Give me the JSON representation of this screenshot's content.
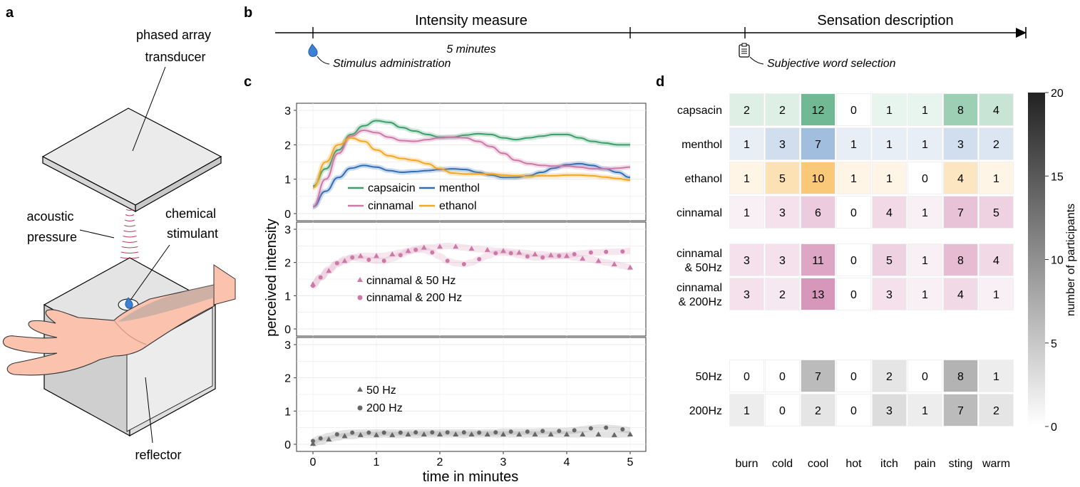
{
  "panel_labels": {
    "a": "a",
    "b": "b",
    "c": "c",
    "d": "d"
  },
  "panel_a": {
    "transducer": [
      "phased array",
      "transducer"
    ],
    "acoustic": [
      "acoustic",
      "pressure"
    ],
    "chemical": [
      "chemical",
      "stimulant"
    ],
    "reflector": "reflector"
  },
  "panel_b": {
    "intensity_label": "Intensity measure",
    "sensation_label": "Sensation description",
    "duration": "5 minutes",
    "stimulus": "Stimulus administration",
    "word_selection": "Subjective word selection"
  },
  "colors": {
    "capsaicin": "#3a9e6a",
    "menthol": "#2f6db5",
    "cinnamal": "#cc79a7",
    "ethanol": "#f5a623",
    "control": "#666666"
  },
  "chart_data": [
    {
      "type": "line",
      "panel": "c-top",
      "xlabel": "time in minutes",
      "ylabel": "perceived intensity",
      "xlim": [
        0,
        5
      ],
      "ylim": [
        0,
        3
      ],
      "x_ticks": [
        0,
        1,
        2,
        3,
        4,
        5
      ],
      "y_ticks": [
        0,
        1,
        2,
        3
      ],
      "grid": true,
      "x": [
        0,
        0.2,
        0.4,
        0.6,
        0.8,
        1.0,
        1.2,
        1.4,
        1.6,
        1.8,
        2.0,
        2.2,
        2.4,
        2.6,
        2.8,
        3.0,
        3.2,
        3.4,
        3.6,
        3.8,
        4.0,
        4.2,
        4.4,
        4.6,
        4.8,
        5.0
      ],
      "series": [
        {
          "name": "capsaicin",
          "values": [
            0.8,
            1.3,
            1.85,
            2.3,
            2.55,
            2.7,
            2.65,
            2.5,
            2.4,
            2.3,
            2.22,
            2.22,
            2.28,
            2.32,
            2.3,
            2.2,
            2.15,
            2.2,
            2.25,
            2.3,
            2.3,
            2.2,
            2.1,
            2.05,
            2.0,
            2.0
          ]
        },
        {
          "name": "menthol",
          "values": [
            0.2,
            0.65,
            1.05,
            1.32,
            1.4,
            1.35,
            1.25,
            1.2,
            1.22,
            1.25,
            1.28,
            1.3,
            1.28,
            1.2,
            1.12,
            1.05,
            1.05,
            1.1,
            1.2,
            1.32,
            1.42,
            1.45,
            1.4,
            1.3,
            1.2,
            1.05
          ]
        },
        {
          "name": "cinnamal",
          "values": [
            0.2,
            1.0,
            1.75,
            2.25,
            2.42,
            2.35,
            2.22,
            2.12,
            2.1,
            2.15,
            2.2,
            2.22,
            2.2,
            2.1,
            1.95,
            1.75,
            1.55,
            1.45,
            1.4,
            1.38,
            1.38,
            1.35,
            1.3,
            1.3,
            1.32,
            1.35
          ]
        },
        {
          "name": "ethanol",
          "values": [
            0.75,
            1.5,
            2.0,
            2.2,
            2.1,
            1.85,
            1.68,
            1.6,
            1.55,
            1.45,
            1.3,
            1.18,
            1.15,
            1.15,
            1.15,
            1.12,
            1.1,
            1.08,
            1.1,
            1.1,
            1.12,
            1.12,
            1.1,
            1.06,
            1.02,
            0.97
          ]
        }
      ]
    },
    {
      "type": "scatter",
      "panel": "c-middle",
      "xlim": [
        0,
        5
      ],
      "ylim": [
        0,
        3
      ],
      "y_ticks": [
        0,
        1,
        2,
        3
      ],
      "grid": true,
      "x": [
        0,
        0.12,
        0.25,
        0.38,
        0.5,
        0.62,
        0.75,
        0.88,
        1.0,
        1.12,
        1.25,
        1.38,
        1.5,
        1.62,
        1.75,
        1.88,
        2.0,
        2.12,
        2.25,
        2.38,
        2.5,
        2.62,
        2.75,
        2.88,
        3.0,
        3.12,
        3.25,
        3.38,
        3.5,
        3.62,
        3.75,
        3.88,
        4.0,
        4.12,
        4.25,
        4.38,
        4.5,
        4.62,
        4.75,
        4.88,
        5.0
      ],
      "series": [
        {
          "name": "cinnamal & 50 Hz",
          "marker": "triangle",
          "values": [
            1.35,
            1.55,
            1.75,
            1.95,
            2.05,
            2.15,
            2.2,
            2.2,
            2.2,
            2.2,
            2.25,
            2.3,
            2.35,
            2.4,
            2.45,
            2.45,
            2.48,
            2.5,
            2.48,
            2.45,
            2.42,
            2.4,
            2.38,
            2.35,
            2.35,
            2.32,
            2.3,
            2.28,
            2.25,
            2.25,
            2.22,
            2.2,
            2.2,
            2.15,
            2.12,
            2.1,
            2.05,
            2.0,
            1.95,
            1.9,
            1.85
          ]
        },
        {
          "name": "cinnamal & 200 Hz",
          "marker": "circle",
          "values": [
            1.3,
            1.55,
            1.8,
            1.98,
            2.1,
            2.15,
            2.12,
            2.08,
            2.05,
            2.05,
            2.12,
            2.22,
            2.32,
            2.38,
            2.38,
            2.3,
            2.18,
            2.05,
            1.98,
            1.95,
            2.0,
            2.1,
            2.2,
            2.28,
            2.3,
            2.28,
            2.22,
            2.18,
            2.15,
            2.15,
            2.18,
            2.2,
            2.22,
            2.25,
            2.28,
            2.3,
            2.3,
            2.32,
            2.32,
            2.33,
            2.35
          ]
        }
      ]
    },
    {
      "type": "scatter",
      "panel": "c-bottom",
      "xlim": [
        0,
        5
      ],
      "ylim": [
        0,
        3
      ],
      "y_ticks": [
        0,
        1,
        2,
        3
      ],
      "grid": true,
      "x": [
        0,
        0.12,
        0.25,
        0.38,
        0.5,
        0.62,
        0.75,
        0.88,
        1.0,
        1.12,
        1.25,
        1.38,
        1.5,
        1.62,
        1.75,
        1.88,
        2.0,
        2.12,
        2.25,
        2.38,
        2.5,
        2.62,
        2.75,
        2.88,
        3.0,
        3.12,
        3.25,
        3.38,
        3.5,
        3.62,
        3.75,
        3.88,
        4.0,
        4.12,
        4.25,
        4.38,
        4.5,
        4.62,
        4.75,
        4.88,
        5.0
      ],
      "series": [
        {
          "name": "50 Hz",
          "marker": "triangle",
          "values": [
            0.02,
            0.08,
            0.15,
            0.2,
            0.25,
            0.25,
            0.28,
            0.28,
            0.28,
            0.3,
            0.28,
            0.28,
            0.3,
            0.28,
            0.3,
            0.3,
            0.3,
            0.3,
            0.3,
            0.28,
            0.3,
            0.3,
            0.3,
            0.3,
            0.3,
            0.3,
            0.3,
            0.3,
            0.3,
            0.3,
            0.3,
            0.3,
            0.3,
            0.3,
            0.3,
            0.3,
            0.3,
            0.3,
            0.28,
            0.3,
            0.3
          ]
        },
        {
          "name": "200 Hz",
          "marker": "circle",
          "values": [
            0.1,
            0.18,
            0.25,
            0.3,
            0.33,
            0.35,
            0.35,
            0.35,
            0.36,
            0.35,
            0.36,
            0.35,
            0.36,
            0.36,
            0.36,
            0.36,
            0.36,
            0.36,
            0.36,
            0.36,
            0.36,
            0.35,
            0.36,
            0.36,
            0.38,
            0.38,
            0.38,
            0.38,
            0.38,
            0.4,
            0.4,
            0.4,
            0.4,
            0.42,
            0.45,
            0.48,
            0.5,
            0.5,
            0.48,
            0.45,
            0.42
          ]
        }
      ]
    },
    {
      "type": "heatmap",
      "panel": "d",
      "columns": [
        "burn",
        "cold",
        "cool",
        "hot",
        "itch",
        "pain",
        "sting",
        "warm"
      ],
      "colorbar": {
        "label": "number of participants",
        "min": 0,
        "max": 20,
        "ticks": [
          0,
          5,
          10,
          15,
          20
        ]
      },
      "groups": [
        {
          "rows": [
            {
              "label": [
                "capsacin"
              ],
              "color": "#3a9e6a",
              "values": [
                2,
                2,
                12,
                0,
                1,
                1,
                8,
                4
              ]
            },
            {
              "label": [
                "menthol"
              ],
              "color": "#2f6db5",
              "values": [
                1,
                3,
                7,
                1,
                1,
                1,
                3,
                2
              ]
            },
            {
              "label": [
                "ethanol"
              ],
              "color": "#f5a623",
              "values": [
                1,
                5,
                10,
                1,
                1,
                0,
                4,
                1
              ]
            },
            {
              "label": [
                "cinnamal"
              ],
              "color": "#cc79a7",
              "values": [
                1,
                3,
                6,
                0,
                4,
                1,
                7,
                5
              ]
            }
          ]
        },
        {
          "rows": [
            {
              "label": [
                "cinnamal",
                "& 50Hz"
              ],
              "color": "#cc79a7",
              "values": [
                3,
                3,
                11,
                0,
                5,
                1,
                8,
                4
              ]
            },
            {
              "label": [
                "cinnamal",
                "& 200Hz"
              ],
              "color": "#cc79a7",
              "values": [
                3,
                2,
                13,
                0,
                3,
                1,
                4,
                1
              ]
            }
          ]
        },
        {
          "rows": [
            {
              "label": [
                "50Hz"
              ],
              "color": "#666666",
              "values": [
                0,
                0,
                7,
                0,
                2,
                0,
                8,
                1
              ]
            },
            {
              "label": [
                "200Hz"
              ],
              "color": "#666666",
              "values": [
                1,
                0,
                2,
                0,
                3,
                1,
                7,
                2
              ]
            }
          ]
        }
      ]
    }
  ]
}
